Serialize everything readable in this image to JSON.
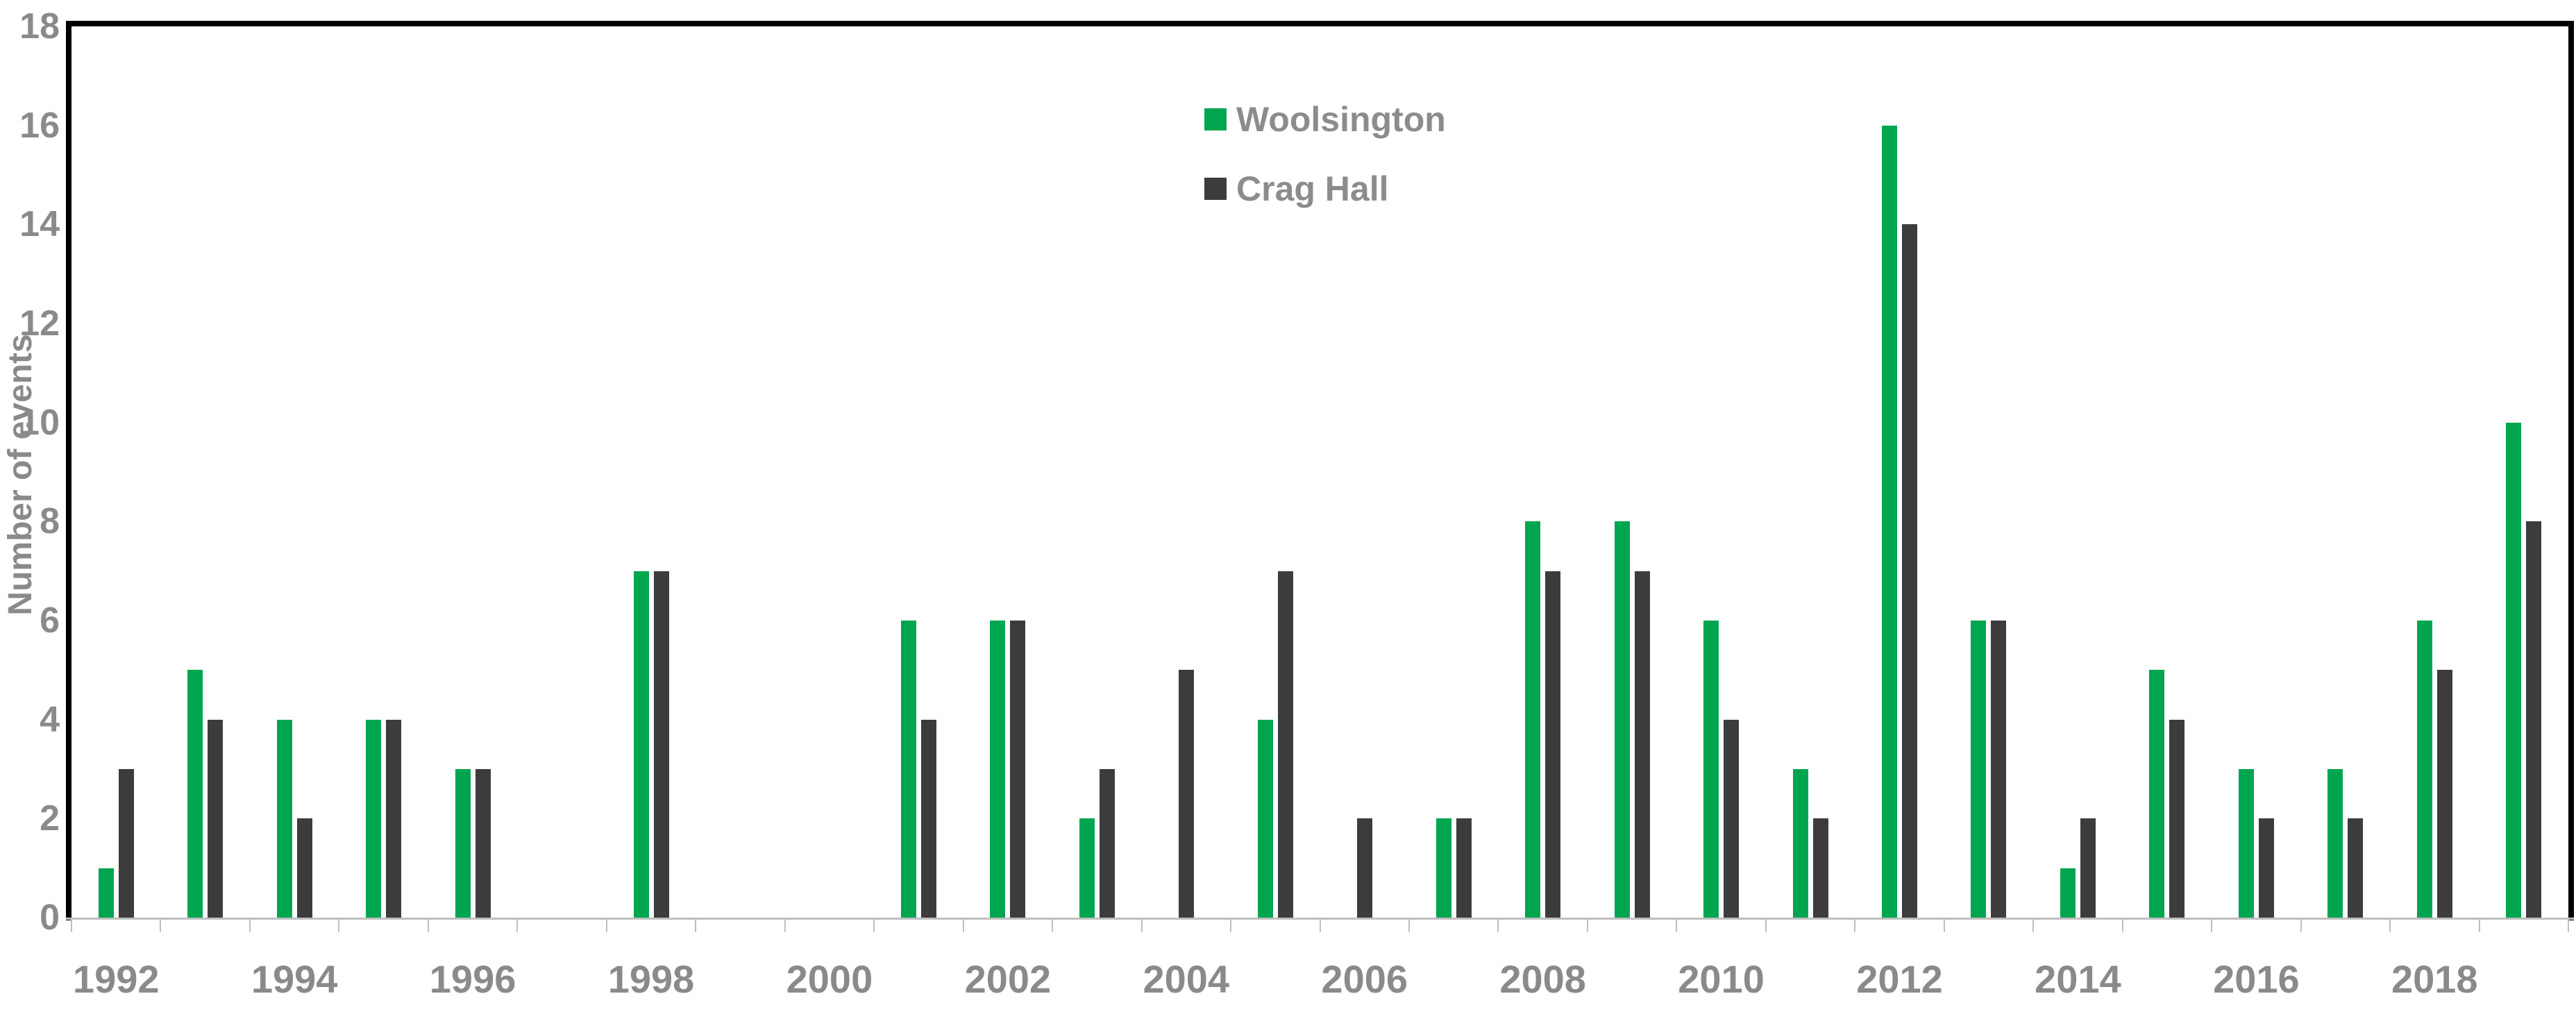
{
  "chart_data": {
    "type": "bar",
    "title": "",
    "xlabel": "",
    "ylabel": "Number of events",
    "ylim": [
      0,
      18
    ],
    "ytick_step": 2,
    "yticks": [
      0,
      2,
      4,
      6,
      8,
      10,
      12,
      14,
      16,
      18
    ],
    "grid": false,
    "legend_position": "top-center-inside",
    "categories": [
      1992,
      1993,
      1994,
      1995,
      1996,
      1997,
      1998,
      1999,
      2000,
      2001,
      2002,
      2003,
      2004,
      2005,
      2006,
      2007,
      2008,
      2009,
      2010,
      2011,
      2012,
      2013,
      2014,
      2015,
      2016,
      2017,
      2018,
      2019
    ],
    "xtick_labeled_years": [
      1992,
      1994,
      1996,
      1998,
      2000,
      2002,
      2004,
      2006,
      2008,
      2010,
      2012,
      2014,
      2016,
      2018
    ],
    "series": [
      {
        "name": "Woolsington",
        "color": "#00A550",
        "values": [
          1,
          5,
          4,
          4,
          3,
          0,
          7,
          0,
          0,
          6,
          6,
          2,
          0,
          4,
          0,
          2,
          8,
          8,
          6,
          3,
          16,
          6,
          1,
          5,
          3,
          3,
          6,
          10
        ]
      },
      {
        "name": "Crag Hall",
        "color": "#3C3C3C",
        "values": [
          3,
          4,
          2,
          4,
          3,
          0,
          7,
          0,
          0,
          4,
          6,
          3,
          5,
          7,
          2,
          2,
          7,
          7,
          4,
          2,
          14,
          6,
          2,
          4,
          2,
          2,
          5,
          8
        ]
      }
    ],
    "colors": {
      "frame": "#000000",
      "bottom_axis": "#bfbfbf",
      "tick": "#bfbfbf",
      "text": "#8a8a8a"
    }
  }
}
